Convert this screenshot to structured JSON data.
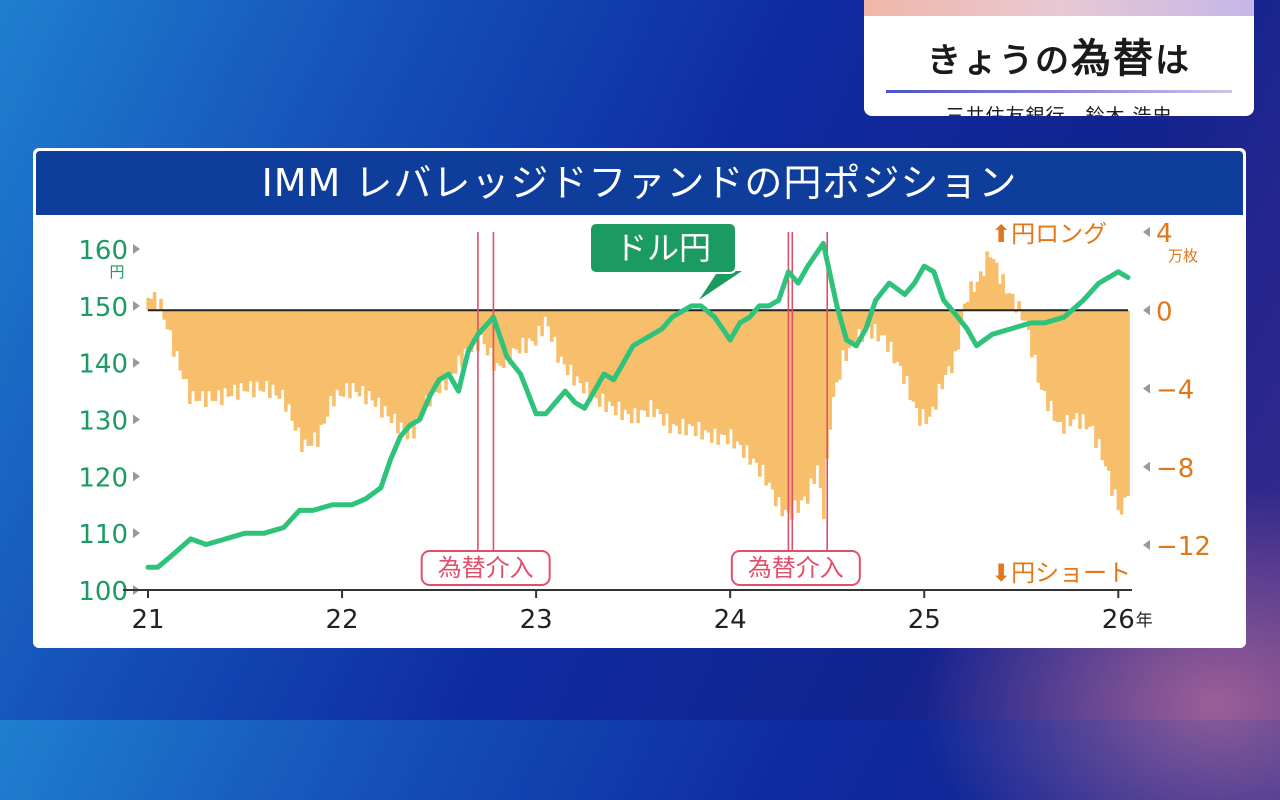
{
  "title_card": {
    "title_prefix": "きょうの",
    "title_big": "為替",
    "title_suffix": "は",
    "subtitle": "三井住友銀行　鈴木 浩史"
  },
  "colors": {
    "header_bg": "#0f3d9b",
    "bars": "#f7bf6b",
    "usdjpy_line": "#2ec27a",
    "axis_left": "#1b9a62",
    "axis_right": "#e0781a",
    "intervention": "#e0506a"
  },
  "chart_data": {
    "type": "bar+line",
    "title": "IMM レバレッジドファンドの円ポジション",
    "x_tick_labels": [
      "21",
      "22",
      "23",
      "24",
      "25",
      "26"
    ],
    "x_unit": "年",
    "left_axis": {
      "ticks": [
        100,
        110,
        120,
        130,
        140,
        150,
        160
      ],
      "unit": "円",
      "range": [
        100,
        163
      ]
    },
    "right_axis": {
      "ticks": [
        4,
        0,
        -4,
        -8,
        -12
      ],
      "tick_labels": [
        "4",
        "0",
        "−4",
        "−8",
        "−12"
      ],
      "unit": "万枚",
      "range": [
        -14.3,
        4.0
      ]
    },
    "line_series": {
      "name": "ドル円",
      "points": [
        [
          2021.0,
          104
        ],
        [
          2021.05,
          104
        ],
        [
          2021.12,
          106
        ],
        [
          2021.22,
          109
        ],
        [
          2021.3,
          108
        ],
        [
          2021.4,
          109
        ],
        [
          2021.5,
          110
        ],
        [
          2021.6,
          110
        ],
        [
          2021.7,
          111
        ],
        [
          2021.78,
          114
        ],
        [
          2021.85,
          114
        ],
        [
          2021.95,
          115
        ],
        [
          2022.05,
          115
        ],
        [
          2022.12,
          116
        ],
        [
          2022.2,
          118
        ],
        [
          2022.25,
          123
        ],
        [
          2022.3,
          127
        ],
        [
          2022.35,
          129
        ],
        [
          2022.4,
          130
        ],
        [
          2022.45,
          134
        ],
        [
          2022.5,
          137
        ],
        [
          2022.55,
          138
        ],
        [
          2022.6,
          135
        ],
        [
          2022.65,
          142
        ],
        [
          2022.7,
          145
        ],
        [
          2022.78,
          148
        ],
        [
          2022.85,
          141
        ],
        [
          2022.92,
          138
        ],
        [
          2023.0,
          131
        ],
        [
          2023.05,
          131
        ],
        [
          2023.1,
          133
        ],
        [
          2023.15,
          135
        ],
        [
          2023.2,
          133
        ],
        [
          2023.25,
          132
        ],
        [
          2023.3,
          135
        ],
        [
          2023.35,
          138
        ],
        [
          2023.4,
          137
        ],
        [
          2023.45,
          140
        ],
        [
          2023.5,
          143
        ],
        [
          2023.55,
          144
        ],
        [
          2023.6,
          145
        ],
        [
          2023.65,
          146
        ],
        [
          2023.7,
          148
        ],
        [
          2023.75,
          149
        ],
        [
          2023.8,
          150
        ],
        [
          2023.85,
          150
        ],
        [
          2023.92,
          148
        ],
        [
          2024.0,
          144
        ],
        [
          2024.05,
          147
        ],
        [
          2024.1,
          148
        ],
        [
          2024.15,
          150
        ],
        [
          2024.2,
          150
        ],
        [
          2024.25,
          151
        ],
        [
          2024.3,
          156
        ],
        [
          2024.35,
          154
        ],
        [
          2024.4,
          157
        ],
        [
          2024.48,
          161
        ],
        [
          2024.55,
          150
        ],
        [
          2024.6,
          144
        ],
        [
          2024.65,
          143
        ],
        [
          2024.7,
          146
        ],
        [
          2024.75,
          151
        ],
        [
          2024.82,
          154
        ],
        [
          2024.9,
          152
        ],
        [
          2024.95,
          154
        ],
        [
          2025.0,
          157
        ],
        [
          2025.05,
          156
        ],
        [
          2025.1,
          151
        ],
        [
          2025.15,
          149
        ],
        [
          2025.22,
          146
        ],
        [
          2025.27,
          143
        ],
        [
          2025.35,
          145
        ],
        [
          2025.45,
          146
        ],
        [
          2025.55,
          147
        ],
        [
          2025.62,
          147
        ],
        [
          2025.72,
          148
        ],
        [
          2025.82,
          151
        ],
        [
          2025.9,
          154
        ],
        [
          2026.0,
          156
        ],
        [
          2026.05,
          155
        ]
      ]
    },
    "bar_series": {
      "name": "円ポジション",
      "approx_points": [
        [
          2021.0,
          0.8
        ],
        [
          2021.06,
          0.4
        ],
        [
          2021.15,
          -2.5
        ],
        [
          2021.22,
          -4.5
        ],
        [
          2021.35,
          -4.5
        ],
        [
          2021.5,
          -4.0
        ],
        [
          2021.62,
          -4.0
        ],
        [
          2021.7,
          -4.5
        ],
        [
          2021.8,
          -7.0
        ],
        [
          2021.88,
          -6.5
        ],
        [
          2021.95,
          -4.5
        ],
        [
          2022.05,
          -4.0
        ],
        [
          2022.15,
          -4.5
        ],
        [
          2022.25,
          -5.5
        ],
        [
          2022.35,
          -6.5
        ],
        [
          2022.45,
          -4.5
        ],
        [
          2022.55,
          -3.5
        ],
        [
          2022.65,
          -2.0
        ],
        [
          2022.72,
          -1.5
        ],
        [
          2022.8,
          -3.0
        ],
        [
          2022.9,
          -2.0
        ],
        [
          2023.0,
          -1.5
        ],
        [
          2023.05,
          -0.5
        ],
        [
          2023.12,
          -2.5
        ],
        [
          2023.2,
          -3.5
        ],
        [
          2023.3,
          -4.5
        ],
        [
          2023.4,
          -5.0
        ],
        [
          2023.5,
          -5.5
        ],
        [
          2023.6,
          -5.0
        ],
        [
          2023.7,
          -6.0
        ],
        [
          2023.8,
          -6.0
        ],
        [
          2023.92,
          -6.5
        ],
        [
          2024.0,
          -6.5
        ],
        [
          2024.1,
          -7.5
        ],
        [
          2024.18,
          -8.5
        ],
        [
          2024.25,
          -10.0
        ],
        [
          2024.3,
          -10.5
        ],
        [
          2024.4,
          -9.5
        ],
        [
          2024.45,
          -8.0
        ],
        [
          2024.48,
          -10.5
        ],
        [
          2024.52,
          -5.0
        ],
        [
          2024.58,
          -2.5
        ],
        [
          2024.65,
          -1.5
        ],
        [
          2024.72,
          -1.0
        ],
        [
          2024.8,
          -1.5
        ],
        [
          2024.9,
          -3.5
        ],
        [
          2024.97,
          -5.5
        ],
        [
          2025.03,
          -5.5
        ],
        [
          2025.1,
          -3.5
        ],
        [
          2025.16,
          -2.5
        ],
        [
          2025.22,
          0.8
        ],
        [
          2025.28,
          1.5
        ],
        [
          2025.34,
          3.0
        ],
        [
          2025.4,
          1.5
        ],
        [
          2025.46,
          0.5
        ],
        [
          2025.52,
          -0.5
        ],
        [
          2025.6,
          -4.0
        ],
        [
          2025.7,
          -6.0
        ],
        [
          2025.78,
          -5.5
        ],
        [
          2025.86,
          -6.0
        ],
        [
          2025.92,
          -7.5
        ],
        [
          2025.98,
          -9.5
        ],
        [
          2026.02,
          -10.5
        ],
        [
          2026.05,
          -9.0
        ]
      ]
    },
    "interventions": [
      {
        "label": "為替介入",
        "dates": [
          2022.7,
          2022.78
        ]
      },
      {
        "label": "為替介入",
        "dates": [
          2024.3,
          2024.32,
          2024.5
        ]
      }
    ],
    "annotations": {
      "line_label": "ドル円",
      "long_label": "円ロング",
      "short_label": "円ショート"
    },
    "grid": false,
    "zero_line": 0
  }
}
